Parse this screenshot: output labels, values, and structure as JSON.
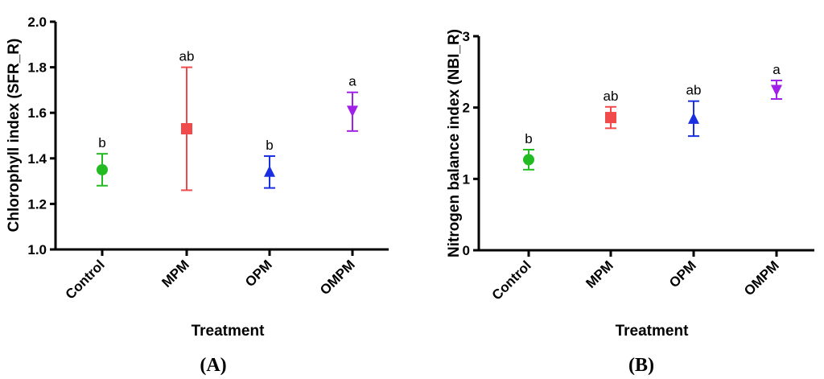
{
  "chart_data": [
    {
      "type": "scatter",
      "panel_label": "(A)",
      "xlabel": "Treatment",
      "ylabel": "Chlorophyll index (SFR_R)",
      "categories": [
        "Control",
        "MPM",
        "OPM",
        "OMPM"
      ],
      "ylim": [
        1.0,
        2.0
      ],
      "yticks": [
        "1.0",
        "1.2",
        "1.4",
        "1.6",
        "1.8",
        "2.0"
      ],
      "points": [
        {
          "category": "Control",
          "mean": 1.35,
          "low": 1.28,
          "high": 1.42,
          "sig": "b",
          "color": "#22bb22",
          "marker": "circle"
        },
        {
          "category": "MPM",
          "mean": 1.53,
          "low": 1.26,
          "high": 1.8,
          "sig": "ab",
          "color": "#f04a4a",
          "marker": "square"
        },
        {
          "category": "OPM",
          "mean": 1.34,
          "low": 1.27,
          "high": 1.41,
          "sig": "b",
          "color": "#1a2fe0",
          "marker": "triangle-up"
        },
        {
          "category": "OMPM",
          "mean": 1.61,
          "low": 1.52,
          "high": 1.69,
          "sig": "a",
          "color": "#a020e8",
          "marker": "triangle-down"
        }
      ]
    },
    {
      "type": "scatter",
      "panel_label": "(B)",
      "xlabel": "Treatment",
      "ylabel": "Nitrogen balance index (NBI_R)",
      "categories": [
        "Control",
        "MPM",
        "OPM",
        "OMPM"
      ],
      "ylim": [
        0,
        3
      ],
      "yticks": [
        "0",
        "1",
        "2",
        "3"
      ],
      "points": [
        {
          "category": "Control",
          "mean": 1.27,
          "low": 1.13,
          "high": 1.41,
          "sig": "b",
          "color": "#22bb22",
          "marker": "circle"
        },
        {
          "category": "MPM",
          "mean": 1.86,
          "low": 1.71,
          "high": 2.01,
          "sig": "ab",
          "color": "#f04a4a",
          "marker": "square"
        },
        {
          "category": "OPM",
          "mean": 1.84,
          "low": 1.6,
          "high": 2.09,
          "sig": "ab",
          "color": "#1a2fe0",
          "marker": "triangle-up"
        },
        {
          "category": "OMPM",
          "mean": 2.25,
          "low": 2.12,
          "high": 2.38,
          "sig": "a",
          "color": "#a020e8",
          "marker": "triangle-down"
        }
      ]
    }
  ]
}
